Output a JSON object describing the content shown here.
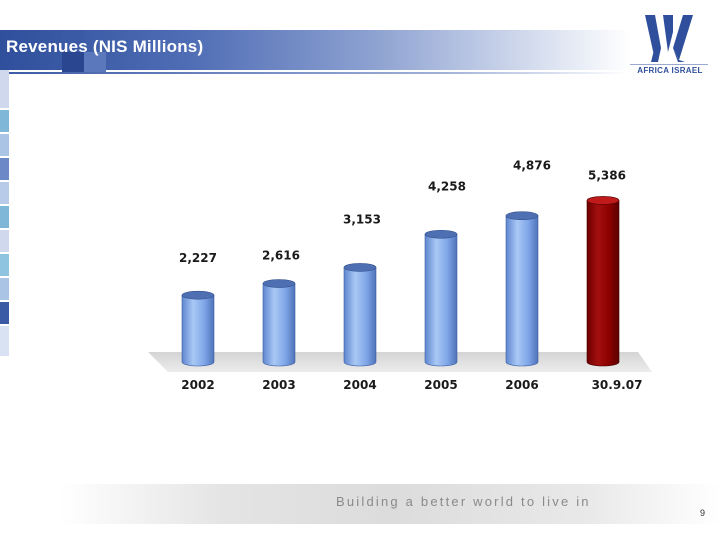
{
  "slide": {
    "title": "Revenues (NIS Millions)",
    "footer_text": "Building a better world to live in",
    "page_number": "9"
  },
  "logo": {
    "text": "AFRICA ISRAEL",
    "icon": "africa-israel-logo",
    "color": "#2f4f9c"
  },
  "colors": {
    "bar_blue": "#7fa6e8",
    "bar_highlight": "#8b0000",
    "header_blue": "#2f4f9c"
  },
  "chart_data": {
    "type": "bar",
    "title": "",
    "xlabel": "",
    "ylabel": "",
    "categories": [
      "2002",
      "2003",
      "2004",
      "2005",
      "2006",
      "30.9.07"
    ],
    "values": [
      2227,
      2616,
      3153,
      4258,
      4876,
      5386
    ],
    "data_labels": [
      "2,227",
      "2,616",
      "3,153",
      "4,258",
      "4,876",
      "5,386"
    ],
    "highlight_index": 5,
    "ylim": [
      0,
      5400
    ],
    "grid": false,
    "legend": "none"
  }
}
